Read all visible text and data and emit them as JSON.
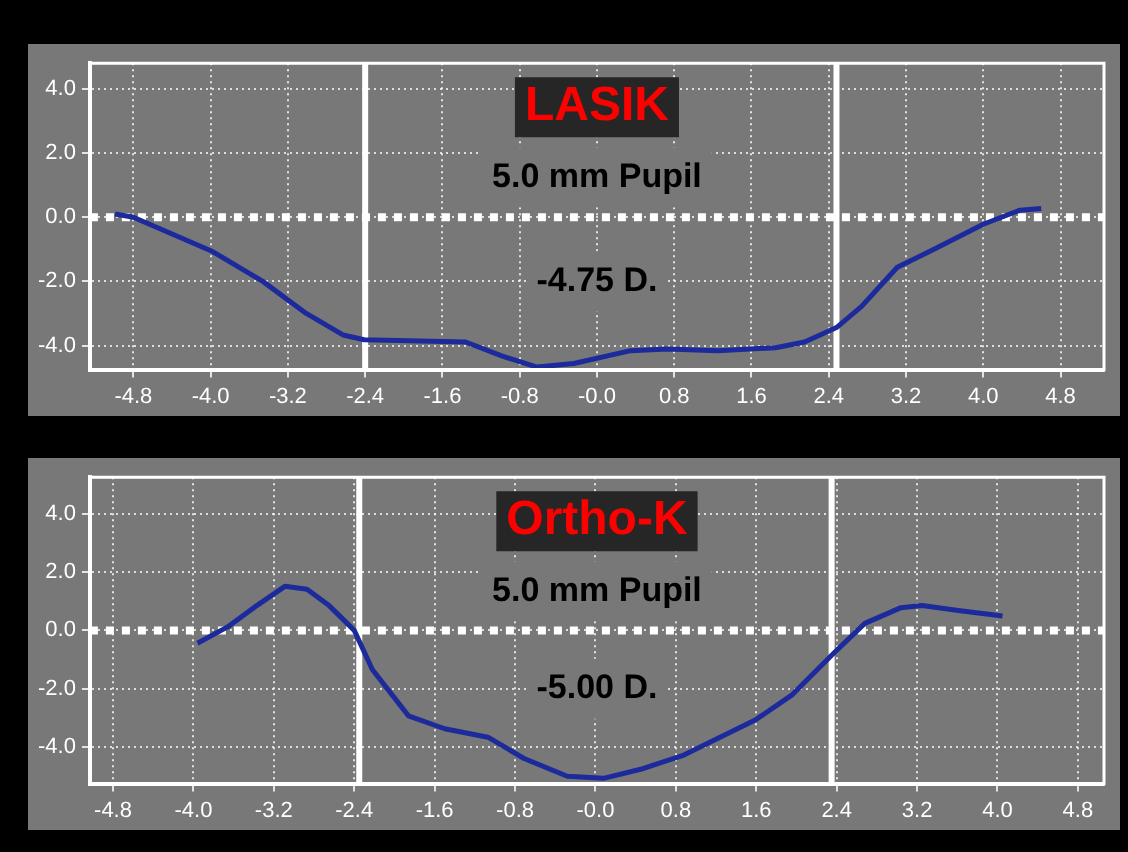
{
  "chart_data": [
    {
      "type": "line",
      "title": "LASIK",
      "subtitle": "5.0 mm Pupil",
      "annotations": [
        "-4.75 D."
      ],
      "x": [
        -4.99,
        -4.8,
        -3.98,
        -3.46,
        -3.01,
        -2.63,
        -2.41,
        -1.36,
        -0.98,
        -0.62,
        -0.24,
        0.35,
        0.73,
        1.25,
        1.85,
        2.15,
        2.48,
        2.74,
        3.11,
        3.49,
        4.0,
        4.38,
        4.6
      ],
      "series": [
        {
          "color": "#1c2a9c",
          "values": [
            0.1,
            0,
            -1.07,
            -2.0,
            -3.0,
            -3.67,
            -3.82,
            -3.89,
            -4.33,
            -4.67,
            -4.56,
            -4.16,
            -4.11,
            -4.16,
            -4.07,
            -3.89,
            -3.44,
            -2.78,
            -1.56,
            -1.0,
            -0.22,
            0.22,
            0.27
          ]
        }
      ],
      "xlim": [
        -5.25,
        5.25
      ],
      "ylim": [
        -4.75,
        4.8
      ],
      "xticks": [
        -4.8,
        {
          "value": -4,
          "label": "-4.0"
        },
        -3.2,
        -2.4,
        -1.6,
        -0.8,
        {
          "value": 0,
          "label": "-0.0"
        },
        0.8,
        1.6,
        2.4,
        3.2,
        {
          "value": 4,
          "label": "4.0"
        },
        4.8
      ],
      "yticks": [
        {
          "value": 4,
          "label": "4.0"
        },
        {
          "value": 2,
          "label": "2.0"
        },
        {
          "value": 0,
          "label": "0.0"
        },
        {
          "value": -2,
          "label": "-2.0"
        },
        {
          "value": -4,
          "label": "-4.0"
        }
      ],
      "ref_lines": [
        {
          "axis": "x",
          "value": -2.4,
          "color": "#ffffff",
          "line_style": "solid"
        },
        {
          "axis": "x",
          "value": 2.48,
          "color": "#ffffff",
          "line_style": "solid"
        },
        {
          "axis": "y",
          "value": 0,
          "color": "#ffffff",
          "line_style": "dotted"
        }
      ],
      "grid": true,
      "legend": false,
      "marker": "none",
      "line_style": "solid"
    },
    {
      "type": "line",
      "title": "Ortho-K",
      "subtitle": "5.0 mm Pupil",
      "annotations": [
        "-5.00 D."
      ],
      "x": [
        -3.96,
        -3.66,
        -3.37,
        -3.09,
        -2.87,
        -2.65,
        -2.4,
        -2.22,
        -1.86,
        -1.5,
        -1.07,
        -0.71,
        -0.28,
        0.08,
        0.45,
        0.88,
        1.6,
        1.96,
        2.35,
        2.68,
        3.04,
        3.25,
        3.61,
        4.05
      ],
      "series": [
        {
          "color": "#1c2a9c",
          "values": [
            -0.44,
            0.12,
            0.85,
            1.51,
            1.41,
            0.85,
            0,
            -1.34,
            -2.93,
            -3.37,
            -3.66,
            -4.39,
            -5.0,
            -5.07,
            -4.76,
            -4.27,
            -3.05,
            -2.2,
            -0.85,
            0.24,
            0.78,
            0.85,
            0.68,
            0.49
          ]
        }
      ],
      "xlim": [
        -5.03,
        5.06
      ],
      "ylim": [
        -5.25,
        5.25
      ],
      "xticks": [
        -4.8,
        {
          "value": -4,
          "label": "-4.0"
        },
        -3.2,
        -2.4,
        -1.6,
        -0.8,
        {
          "value": 0,
          "label": "-0.0"
        },
        0.8,
        1.6,
        2.4,
        3.2,
        {
          "value": 4,
          "label": "4.0"
        },
        4.8
      ],
      "yticks": [
        {
          "value": 4,
          "label": "4.0"
        },
        {
          "value": 2,
          "label": "2.0"
        },
        {
          "value": 0,
          "label": "0.0"
        },
        {
          "value": -2,
          "label": "-2.0"
        },
        {
          "value": -4,
          "label": "-4.0"
        }
      ],
      "ref_lines": [
        {
          "axis": "x",
          "value": -2.35,
          "color": "#ffffff",
          "line_style": "solid"
        },
        {
          "axis": "x",
          "value": 2.35,
          "color": "#ffffff",
          "line_style": "solid"
        },
        {
          "axis": "y",
          "value": 0,
          "color": "#ffffff",
          "line_style": "dotted"
        }
      ],
      "grid": true,
      "legend": false,
      "marker": "none",
      "line_style": "solid"
    }
  ]
}
